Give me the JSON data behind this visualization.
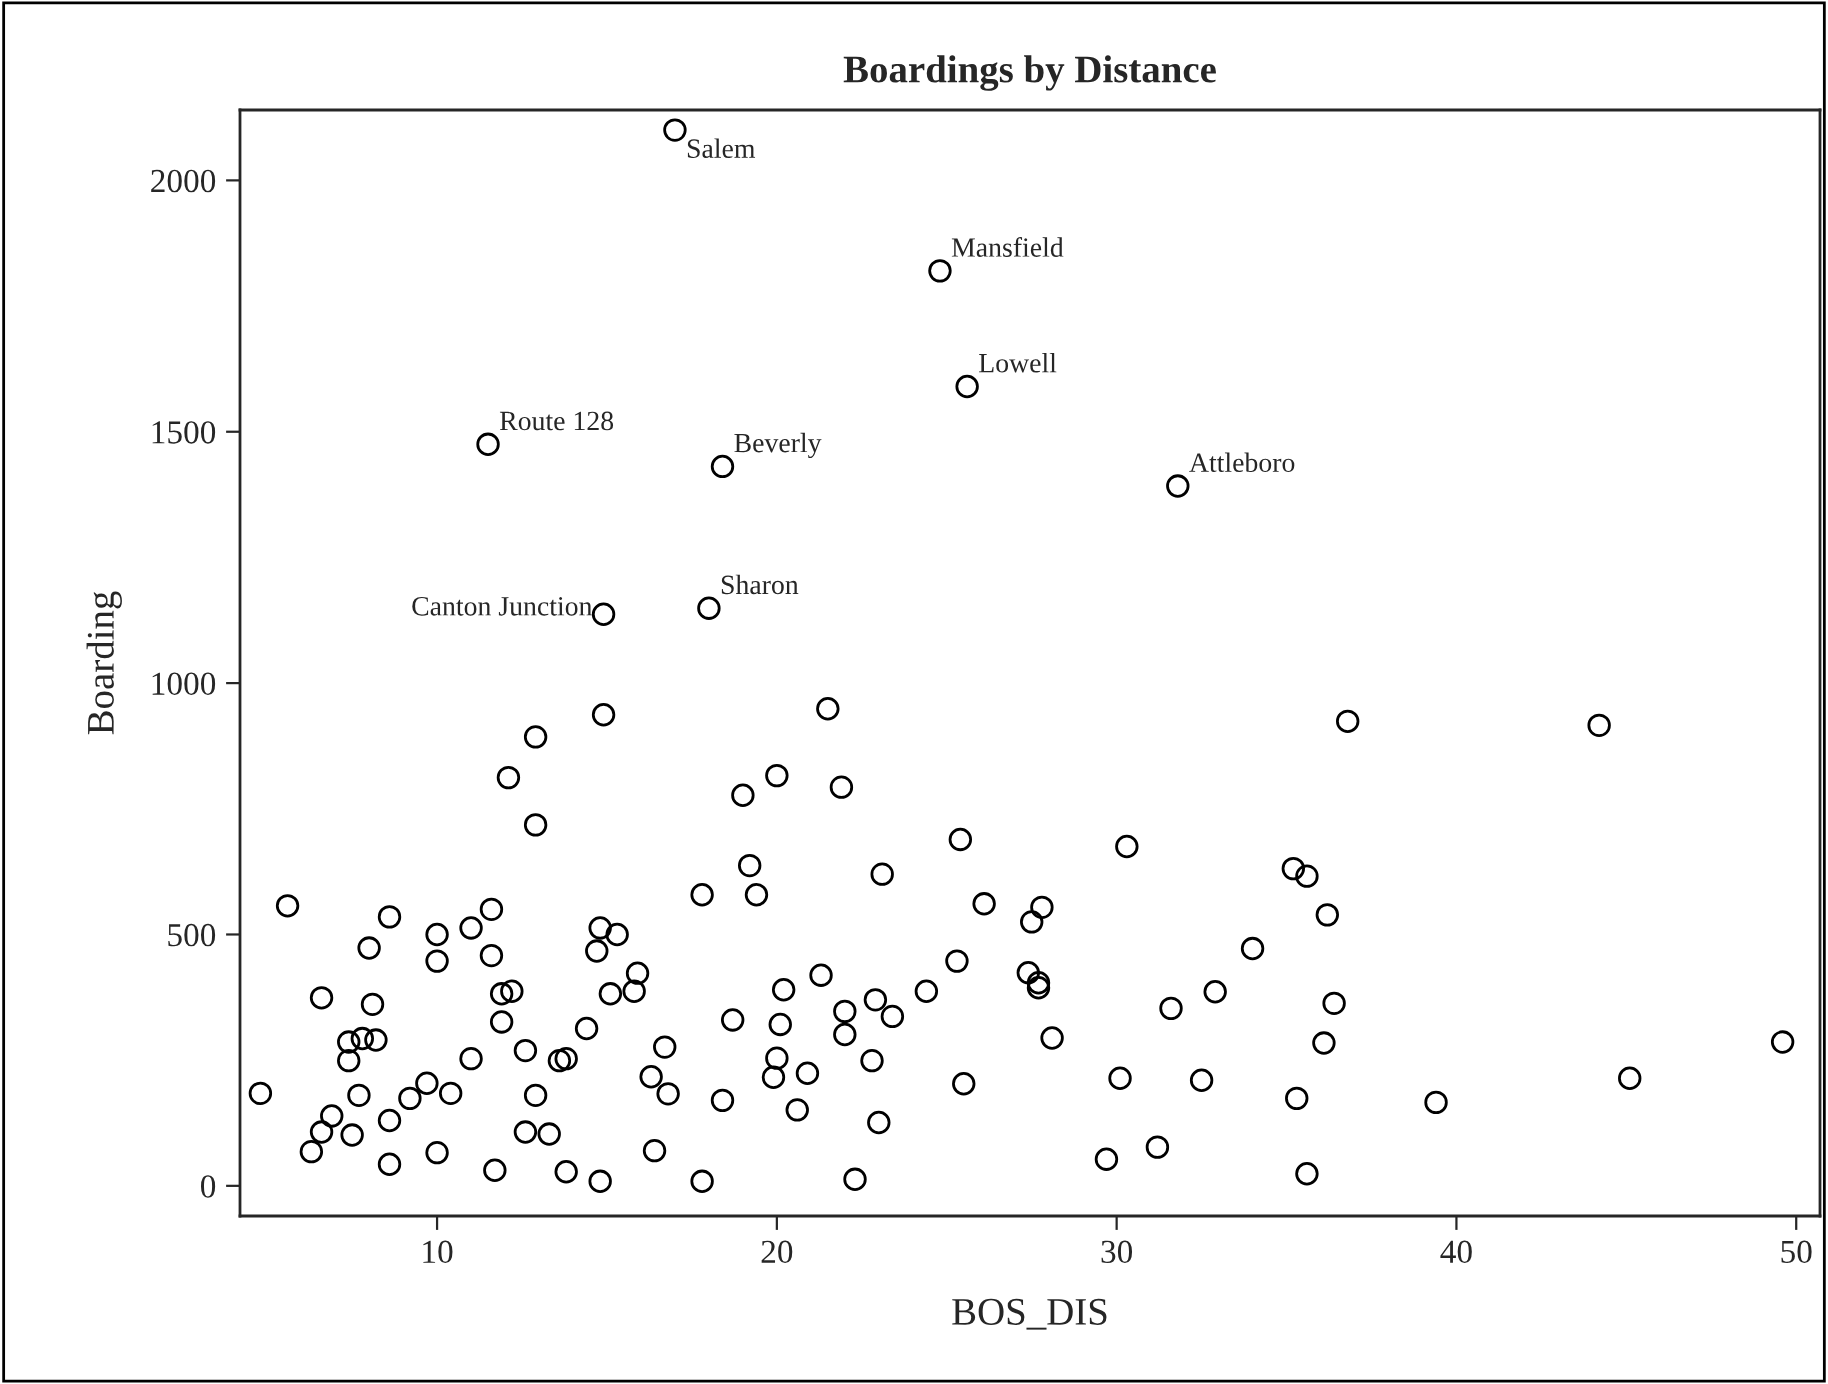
{
  "chart_data": {
    "type": "scatter",
    "title": "Boardings by Distance",
    "xlabel": "BOS_DIS",
    "ylabel": "Boarding",
    "xlim": [
      4.2,
      50.7
    ],
    "ylim": [
      -60,
      2140
    ],
    "xticks": [
      10,
      20,
      30,
      40,
      50
    ],
    "yticks": [
      0,
      500,
      1000,
      1500,
      2000
    ],
    "grid": false,
    "marker": "circle",
    "series": [
      {
        "color": "#000000",
        "x": [
          17.0,
          24.8,
          25.6,
          11.5,
          18.4,
          31.8,
          14.9,
          18.0,
          14.9,
          12.9,
          12.1,
          12.9,
          5.6,
          8.6,
          11.6,
          8.0,
          10.0,
          11.0,
          10.0,
          11.6,
          14.8,
          15.3,
          14.7,
          6.6,
          8.1,
          11.9,
          12.2,
          15.1,
          15.8,
          15.9,
          11.9,
          14.4,
          7.4,
          7.8,
          8.2,
          7.4,
          12.6,
          11.0,
          13.6,
          13.8,
          4.8,
          7.7,
          9.7,
          9.2,
          10.4,
          12.9,
          6.9,
          6.6,
          6.3,
          7.5,
          8.6,
          12.6,
          13.3,
          8.6,
          10.0,
          11.7,
          13.8,
          14.8,
          21.5,
          20.0,
          19.0,
          21.9,
          25.4,
          19.2,
          23.1,
          17.8,
          19.4,
          26.1,
          25.3,
          21.3,
          20.2,
          24.4,
          22.9,
          22.0,
          23.4,
          18.7,
          20.1,
          22.0,
          16.7,
          22.8,
          20.0,
          19.9,
          20.9,
          16.3,
          16.8,
          18.4,
          20.6,
          23.0,
          25.5,
          16.4,
          17.8,
          22.3,
          36.8,
          30.3,
          35.2,
          35.6,
          27.8,
          27.5,
          36.2,
          34.0,
          27.4,
          27.7,
          27.7,
          32.9,
          31.6,
          36.4,
          28.1,
          36.1,
          30.1,
          32.5,
          35.3,
          29.7,
          31.2,
          35.6,
          44.2,
          39.4,
          45.1,
          49.6
        ],
        "values": [
          2100,
          1820,
          1590,
          1475,
          1431,
          1392,
          1137,
          1149,
          937,
          893,
          812,
          718,
          557,
          535,
          550,
          473,
          500,
          513,
          447,
          458,
          513,
          500,
          467,
          374,
          361,
          382,
          387,
          382,
          387,
          423,
          326,
          313,
          286,
          293,
          290,
          249,
          269,
          253,
          249,
          253,
          184,
          180,
          204,
          174,
          184,
          180,
          139,
          107,
          68,
          101,
          130,
          107,
          103,
          43,
          66,
          31,
          28,
          9,
          949,
          816,
          777,
          793,
          689,
          637,
          620,
          579,
          579,
          561,
          447,
          419,
          390,
          387,
          370,
          347,
          337,
          330,
          321,
          301,
          276,
          249,
          254,
          216,
          224,
          217,
          183,
          170,
          151,
          126,
          203,
          70,
          9,
          13,
          924,
          675,
          631,
          616,
          554,
          525,
          539,
          472,
          424,
          404,
          394,
          386,
          353,
          363,
          294,
          284,
          214,
          210,
          174,
          53,
          77,
          24,
          916,
          166,
          214,
          286
        ]
      }
    ],
    "annotations": [
      {
        "text": "Salem",
        "x": 17.0,
        "y": 2100
      },
      {
        "text": "Mansfield",
        "x": 24.8,
        "y": 1820
      },
      {
        "text": "Lowell",
        "x": 25.6,
        "y": 1590
      },
      {
        "text": "Route 128",
        "x": 11.5,
        "y": 1475
      },
      {
        "text": "Beverly",
        "x": 18.4,
        "y": 1431
      },
      {
        "text": "Attleboro",
        "x": 31.8,
        "y": 1392
      },
      {
        "text": "Canton Junction",
        "x": 14.9,
        "y": 1137
      },
      {
        "text": "Sharon",
        "x": 18.0,
        "y": 1149
      }
    ]
  }
}
